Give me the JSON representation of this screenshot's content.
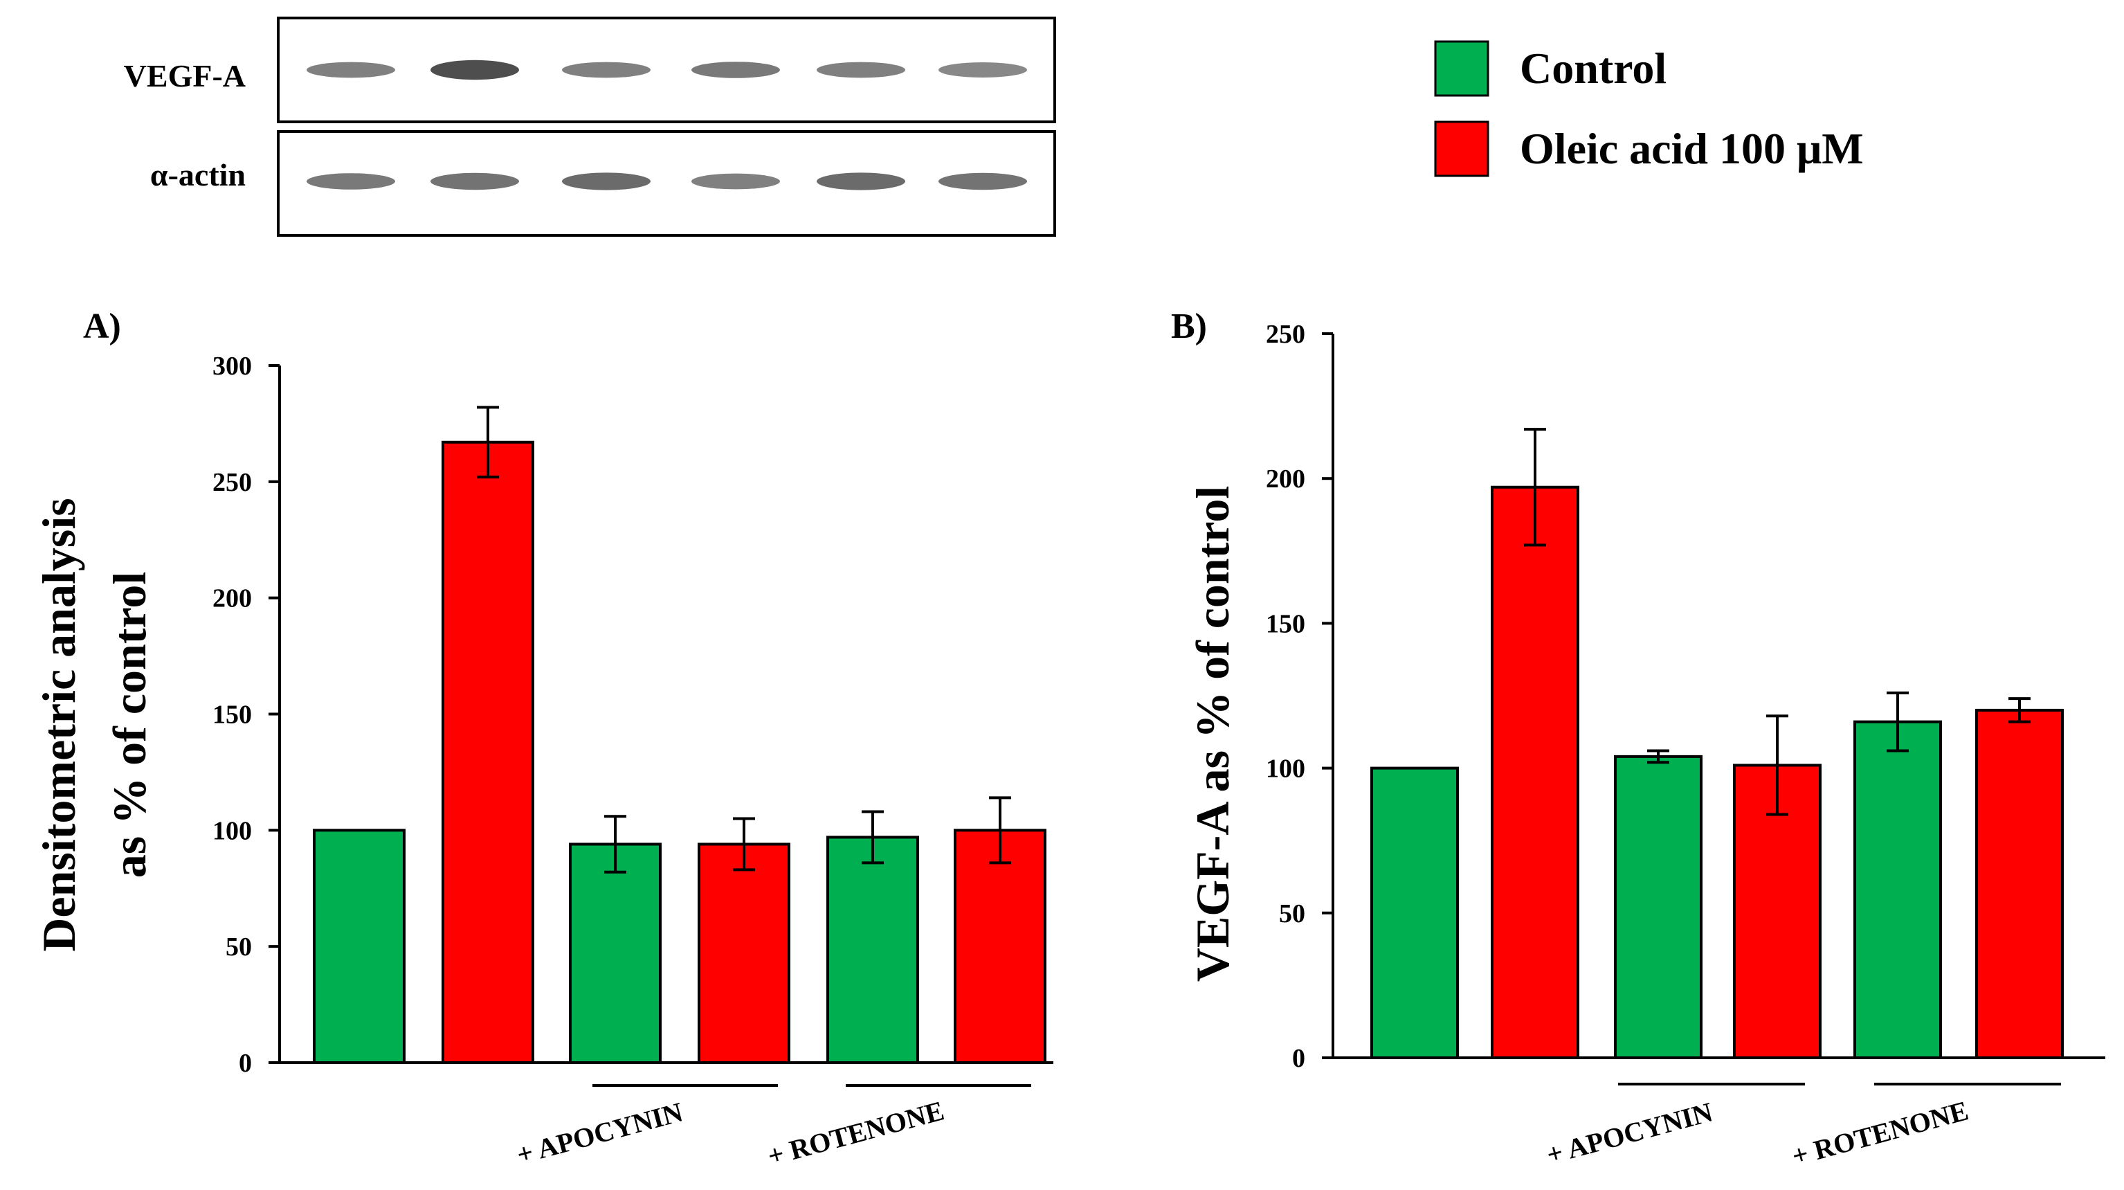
{
  "blot": {
    "rows": [
      {
        "label": "VEGF-A",
        "band_intensity": [
          0.55,
          0.9,
          0.55,
          0.6,
          0.55,
          0.5
        ]
      },
      {
        "label": "α-actin",
        "band_intensity": [
          0.6,
          0.65,
          0.7,
          0.55,
          0.7,
          0.65
        ]
      }
    ]
  },
  "legend": {
    "items": [
      {
        "label": "Control",
        "color": "#00b050"
      },
      {
        "label": "Oleic acid 100 μM",
        "color": "#ff0000"
      }
    ]
  },
  "chart_data": [
    {
      "type": "bar",
      "panel_label": "A)",
      "ylabel_line1": "Densitometric analysis",
      "ylabel_line2": "as % of control",
      "ylim": [
        0,
        300
      ],
      "yticks": [
        "0",
        "50",
        "100",
        "150",
        "200",
        "250",
        "300"
      ],
      "group_labels": [
        "+ APOCYNIN",
        "+ ROTENONE"
      ],
      "series": [
        {
          "name": "Control",
          "color": "#00b050",
          "values": [
            100,
            94,
            97
          ],
          "errors": [
            0,
            12,
            11
          ]
        },
        {
          "name": "Oleic acid 100 μM",
          "color": "#ff0000",
          "values": [
            267,
            94,
            100
          ],
          "errors": [
            15,
            11,
            14
          ]
        }
      ]
    },
    {
      "type": "bar",
      "panel_label": "B)",
      "ylabel_line1": "VEGF-A as % of control",
      "ylabel_line2": "",
      "ylim": [
        0,
        250
      ],
      "yticks": [
        "0",
        "50",
        "100",
        "150",
        "200",
        "250"
      ],
      "group_labels": [
        "+ APOCYNIN",
        "+ ROTENONE"
      ],
      "series": [
        {
          "name": "Control",
          "color": "#00b050",
          "values": [
            100,
            104,
            116
          ],
          "errors": [
            0,
            2,
            10
          ]
        },
        {
          "name": "Oleic acid 100 μM",
          "color": "#ff0000",
          "values": [
            197,
            101,
            120
          ],
          "errors": [
            20,
            17,
            4
          ]
        }
      ]
    }
  ]
}
